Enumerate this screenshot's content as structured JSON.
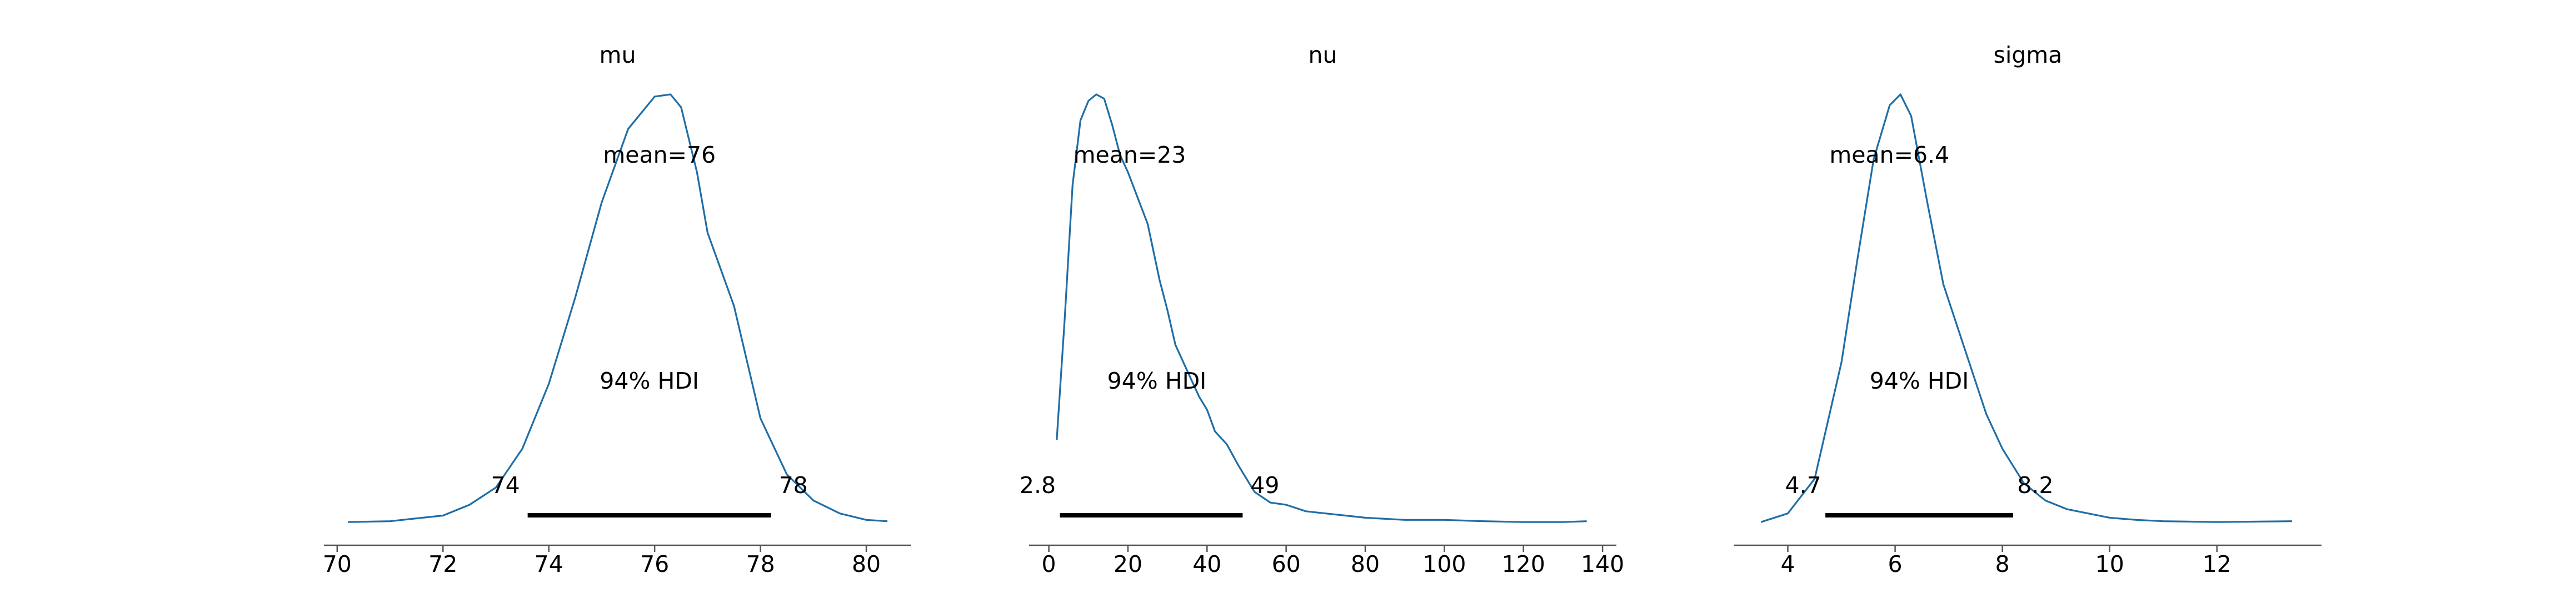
{
  "colors": {
    "density": "#1f6ea6",
    "hdi_bar": "#000000",
    "axis": "#555555"
  },
  "chart_data": [
    {
      "type": "line",
      "title": "mu",
      "mean_label": "mean=76",
      "hdi_label": "94% HDI",
      "hdi": {
        "low": 73.6,
        "high": 78.2,
        "low_label": "74",
        "high_label": "78"
      },
      "xlim": [
        69.75,
        80.85
      ],
      "ticks": [
        70,
        72,
        74,
        76,
        78,
        80
      ],
      "tick_labels": [
        "70",
        "72",
        "74",
        "76",
        "78",
        "80"
      ],
      "x": [
        70.2,
        71.0,
        72.0,
        72.5,
        73.0,
        73.5,
        74.0,
        74.5,
        75.0,
        75.5,
        76.0,
        76.3,
        76.5,
        76.8,
        77.0,
        77.5,
        78.0,
        78.5,
        79.0,
        79.5,
        80.0,
        80.4
      ],
      "y": [
        0.01,
        0.012,
        0.025,
        0.05,
        0.09,
        0.18,
        0.33,
        0.53,
        0.75,
        0.92,
        0.995,
        1.0,
        0.97,
        0.82,
        0.68,
        0.51,
        0.25,
        0.12,
        0.06,
        0.03,
        0.015,
        0.012
      ]
    },
    {
      "type": "line",
      "title": "nu",
      "mean_label": "mean=23",
      "hdi_label": "94% HDI",
      "hdi": {
        "low": 2.8,
        "high": 49.0,
        "low_label": "2.8",
        "high_label": "49"
      },
      "xlim": [
        -5.0,
        143.5
      ],
      "ticks": [
        0,
        20,
        40,
        60,
        80,
        100,
        120,
        140
      ],
      "tick_labels": [
        "0",
        "20",
        "40",
        "60",
        "80",
        "100",
        "120",
        "140"
      ],
      "x": [
        2,
        4,
        6,
        8,
        10,
        12,
        14,
        16,
        18,
        20,
        25,
        28,
        30,
        32,
        35,
        38,
        40,
        42,
        45,
        48,
        52,
        56,
        60,
        65,
        70,
        75,
        80,
        90,
        100,
        110,
        120,
        130,
        136
      ],
      "y": [
        0.2,
        0.48,
        0.79,
        0.94,
        0.985,
        1.0,
        0.99,
        0.93,
        0.86,
        0.82,
        0.7,
        0.57,
        0.5,
        0.42,
        0.36,
        0.3,
        0.27,
        0.22,
        0.19,
        0.14,
        0.08,
        0.055,
        0.05,
        0.035,
        0.03,
        0.025,
        0.02,
        0.015,
        0.015,
        0.012,
        0.01,
        0.01,
        0.012
      ]
    },
    {
      "type": "line",
      "title": "sigma",
      "mean_label": "mean=6.4",
      "hdi_label": "94% HDI",
      "hdi": {
        "low": 4.7,
        "high": 8.2,
        "low_label": "4.7",
        "high_label": "8.2"
      },
      "xlim": [
        3.0,
        13.95
      ],
      "ticks": [
        4,
        6,
        8,
        10,
        12
      ],
      "tick_labels": [
        "4",
        "6",
        "8",
        "10",
        "12"
      ],
      "x": [
        3.5,
        4.0,
        4.5,
        5.0,
        5.3,
        5.6,
        5.9,
        6.1,
        6.3,
        6.6,
        6.9,
        7.3,
        7.7,
        8.0,
        8.4,
        8.8,
        9.2,
        9.6,
        10.0,
        10.5,
        11.0,
        12.0,
        13.4
      ],
      "y": [
        0.01,
        0.03,
        0.11,
        0.38,
        0.62,
        0.85,
        0.975,
        1.0,
        0.95,
        0.75,
        0.56,
        0.41,
        0.26,
        0.18,
        0.1,
        0.06,
        0.04,
        0.03,
        0.02,
        0.015,
        0.012,
        0.01,
        0.012
      ]
    }
  ]
}
